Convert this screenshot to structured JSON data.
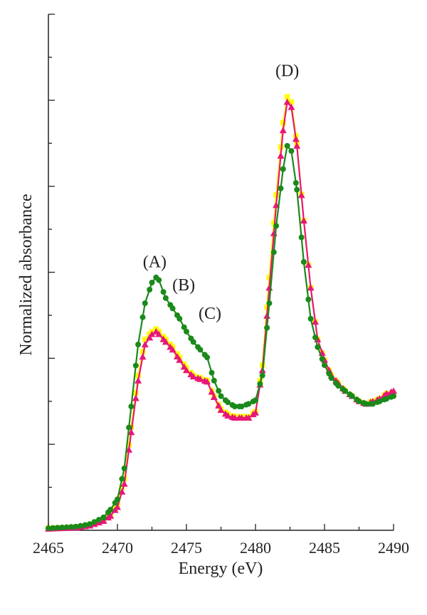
{
  "chart_data": {
    "type": "line",
    "title": "",
    "xlabel": "Energy (eV)",
    "ylabel": "Normalized absorbance",
    "xlim": [
      2465,
      2490
    ],
    "ylim": [
      0,
      1.0
    ],
    "xticks": [
      "2465",
      "2470",
      "2475",
      "2480",
      "2485",
      "2490"
    ],
    "yticks_labeled": false,
    "grid": false,
    "legend": "none",
    "annotations": [
      {
        "label": "(A)",
        "x": 2472.7,
        "y": 0.51
      },
      {
        "label": "(B)",
        "x": 2474.8,
        "y": 0.465
      },
      {
        "label": "(C)",
        "x": 2476.7,
        "y": 0.41
      },
      {
        "label": "(D)",
        "x": 2482.3,
        "y": 0.88
      }
    ],
    "series": [
      {
        "color": "#ffff00",
        "marker": "square",
        "x": [
          2465,
          2467,
          2468,
          2469,
          2469.5,
          2470,
          2470.5,
          2471,
          2471.5,
          2472,
          2472.5,
          2472.8,
          2473,
          2473.5,
          2474,
          2474.5,
          2475,
          2475.5,
          2476,
          2476.5,
          2477,
          2477.5,
          2478,
          2478.5,
          2479,
          2479.5,
          2480,
          2480.5,
          2481,
          2481.5,
          2482,
          2482.3,
          2482.6,
          2483,
          2483.5,
          2484,
          2484.5,
          2485,
          2485.5,
          2486,
          2486.5,
          2487,
          2487.5,
          2488,
          2488.5,
          2489,
          2489.5,
          2490
        ],
        "y": [
          0.004,
          0.006,
          0.01,
          0.02,
          0.03,
          0.05,
          0.1,
          0.2,
          0.3,
          0.37,
          0.385,
          0.39,
          0.385,
          0.37,
          0.355,
          0.335,
          0.315,
          0.3,
          0.295,
          0.29,
          0.26,
          0.235,
          0.225,
          0.22,
          0.22,
          0.22,
          0.23,
          0.32,
          0.49,
          0.65,
          0.79,
          0.84,
          0.83,
          0.75,
          0.6,
          0.47,
          0.37,
          0.33,
          0.3,
          0.285,
          0.27,
          0.26,
          0.25,
          0.245,
          0.25,
          0.255,
          0.265,
          0.265
        ]
      },
      {
        "color": "#e8177a",
        "marker": "triangle",
        "x": [
          2465,
          2467,
          2468,
          2469,
          2469.5,
          2470,
          2470.5,
          2471,
          2471.5,
          2472,
          2472.5,
          2472.8,
          2473,
          2473.5,
          2474,
          2474.5,
          2475,
          2475.5,
          2476,
          2476.5,
          2477,
          2477.5,
          2478,
          2478.5,
          2479,
          2479.5,
          2480,
          2480.5,
          2481,
          2481.5,
          2482,
          2482.3,
          2482.6,
          2483,
          2483.5,
          2484,
          2484.5,
          2485,
          2485.5,
          2486,
          2486.5,
          2487,
          2487.5,
          2488,
          2488.5,
          2489,
          2489.5,
          2490
        ],
        "y": [
          0.003,
          0.005,
          0.009,
          0.018,
          0.028,
          0.045,
          0.09,
          0.19,
          0.29,
          0.36,
          0.38,
          0.385,
          0.38,
          0.365,
          0.35,
          0.33,
          0.31,
          0.298,
          0.293,
          0.288,
          0.258,
          0.233,
          0.222,
          0.218,
          0.218,
          0.218,
          0.228,
          0.31,
          0.47,
          0.63,
          0.775,
          0.83,
          0.82,
          0.745,
          0.6,
          0.47,
          0.37,
          0.33,
          0.3,
          0.285,
          0.27,
          0.26,
          0.25,
          0.245,
          0.25,
          0.255,
          0.265,
          0.27
        ]
      },
      {
        "color": "#1a8a1a",
        "marker": "circle",
        "x": [
          2465,
          2467,
          2468,
          2469,
          2469.5,
          2470,
          2470.5,
          2471,
          2471.5,
          2472,
          2472.5,
          2472.8,
          2473,
          2473.5,
          2474,
          2474.5,
          2475,
          2475.5,
          2476,
          2476.5,
          2477,
          2477.5,
          2478,
          2478.5,
          2479,
          2479.5,
          2480,
          2480.5,
          2481,
          2481.5,
          2482,
          2482.3,
          2482.6,
          2483,
          2483.5,
          2484,
          2484.5,
          2485,
          2485.5,
          2486,
          2486.5,
          2487,
          2487.5,
          2488,
          2488.5,
          2489,
          2489.5,
          2490
        ],
        "y": [
          0.004,
          0.007,
          0.012,
          0.025,
          0.04,
          0.06,
          0.12,
          0.24,
          0.36,
          0.44,
          0.48,
          0.49,
          0.485,
          0.45,
          0.43,
          0.41,
          0.385,
          0.365,
          0.35,
          0.335,
          0.29,
          0.26,
          0.248,
          0.24,
          0.24,
          0.245,
          0.252,
          0.3,
          0.44,
          0.59,
          0.7,
          0.745,
          0.735,
          0.66,
          0.52,
          0.41,
          0.355,
          0.32,
          0.295,
          0.28,
          0.27,
          0.26,
          0.25,
          0.245,
          0.245,
          0.25,
          0.255,
          0.26
        ]
      }
    ]
  }
}
